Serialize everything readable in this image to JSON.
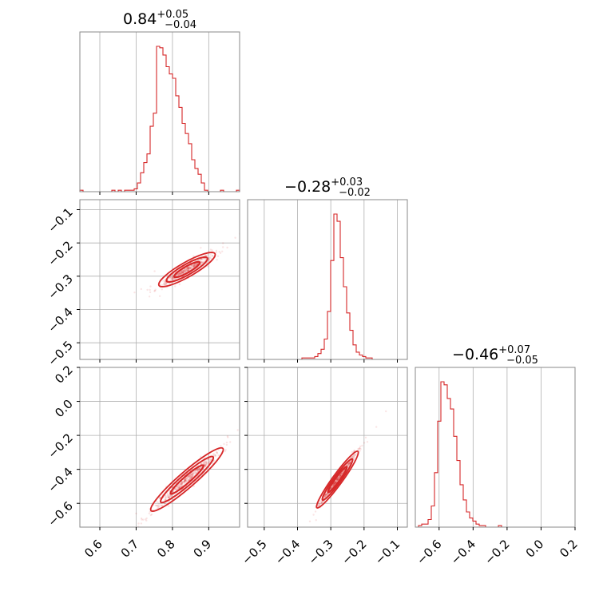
{
  "chart_data": {
    "type": "corner",
    "colors": {
      "series": "#d62728",
      "grid": "#b0b0b0",
      "frame": "#888888"
    },
    "grid": true,
    "parameters": [
      {
        "index": 0,
        "range": [
          0.545,
          0.985
        ],
        "ticks": [
          0.6,
          0.7,
          0.8,
          0.9
        ],
        "tick_labels": [
          "0.6",
          "0.7",
          "0.8",
          "0.9"
        ],
        "title": {
          "value": "0.84",
          "plus": "+0.05",
          "minus": "−0.04"
        }
      },
      {
        "index": 1,
        "range": [
          -0.55,
          -0.07
        ],
        "ticks": [
          -0.5,
          -0.4,
          -0.3,
          -0.2,
          -0.1
        ],
        "tick_labels": [
          "−0.5",
          "−0.4",
          "−0.3",
          "−0.2",
          "−0.1"
        ],
        "title": {
          "value": "−0.28",
          "plus": "+0.03",
          "minus": "−0.02"
        }
      },
      {
        "index": 2,
        "range": [
          -0.74,
          0.2
        ],
        "ticks": [
          -0.6,
          -0.4,
          -0.2,
          0.0,
          0.2
        ],
        "tick_labels": [
          "−0.6",
          "−0.4",
          "−0.2",
          "0.0",
          "0.2"
        ],
        "title": {
          "value": "−0.46",
          "plus": "+0.07",
          "minus": "−0.05"
        }
      }
    ],
    "histograms": [
      {
        "param": 0,
        "bin_start": 0.545,
        "bin_width": 0.0088,
        "counts": [
          1,
          0,
          0,
          0,
          0,
          0,
          0,
          0,
          0,
          0,
          1,
          0,
          1,
          0,
          1,
          1,
          1,
          2,
          6,
          13,
          20,
          26,
          45,
          54,
          100,
          99,
          94,
          86,
          81,
          78,
          66,
          58,
          47,
          40,
          33,
          22,
          16,
          12,
          6,
          1,
          0,
          0,
          0,
          0,
          1,
          0,
          0,
          0,
          0,
          1
        ]
      },
      {
        "param": 1,
        "bin_start": -0.55,
        "bin_width": 0.0096,
        "counts": [
          0,
          0,
          0,
          0,
          0,
          0,
          0,
          0,
          0,
          0,
          0,
          0,
          0,
          0,
          0,
          0,
          0,
          1,
          1,
          1,
          1,
          2,
          4,
          7,
          14,
          33,
          68,
          100,
          95,
          70,
          50,
          32,
          20,
          10,
          5,
          3,
          2,
          1,
          1,
          0,
          0,
          0,
          0,
          0,
          0,
          0,
          0,
          0,
          0,
          0
        ]
      },
      {
        "param": 2,
        "bin_start": -0.74,
        "bin_width": 0.0188,
        "counts": [
          0,
          1,
          2,
          2,
          5,
          14,
          36,
          70,
          96,
          94,
          85,
          78,
          60,
          44,
          28,
          18,
          10,
          6,
          4,
          2,
          1,
          1,
          0,
          0,
          0,
          0,
          1,
          0,
          0,
          0,
          0,
          0,
          0,
          0,
          0,
          0,
          0,
          0,
          0,
          0,
          0,
          0,
          0,
          0,
          0,
          0,
          0,
          0,
          0,
          0
        ]
      }
    ],
    "scatter_panels": [
      {
        "x_param": 0,
        "y_param": 1,
        "slope": 0.62,
        "center": [
          0.84,
          -0.28
        ],
        "spread": [
          0.035,
          0.008
        ]
      },
      {
        "x_param": 0,
        "y_param": 2,
        "slope": 1.85,
        "center": [
          0.84,
          -0.46
        ],
        "spread": [
          0.045,
          0.02
        ]
      },
      {
        "x_param": 1,
        "y_param": 2,
        "slope": 2.7,
        "center": [
          -0.28,
          -0.46
        ],
        "spread": [
          0.028,
          0.012
        ]
      }
    ]
  }
}
